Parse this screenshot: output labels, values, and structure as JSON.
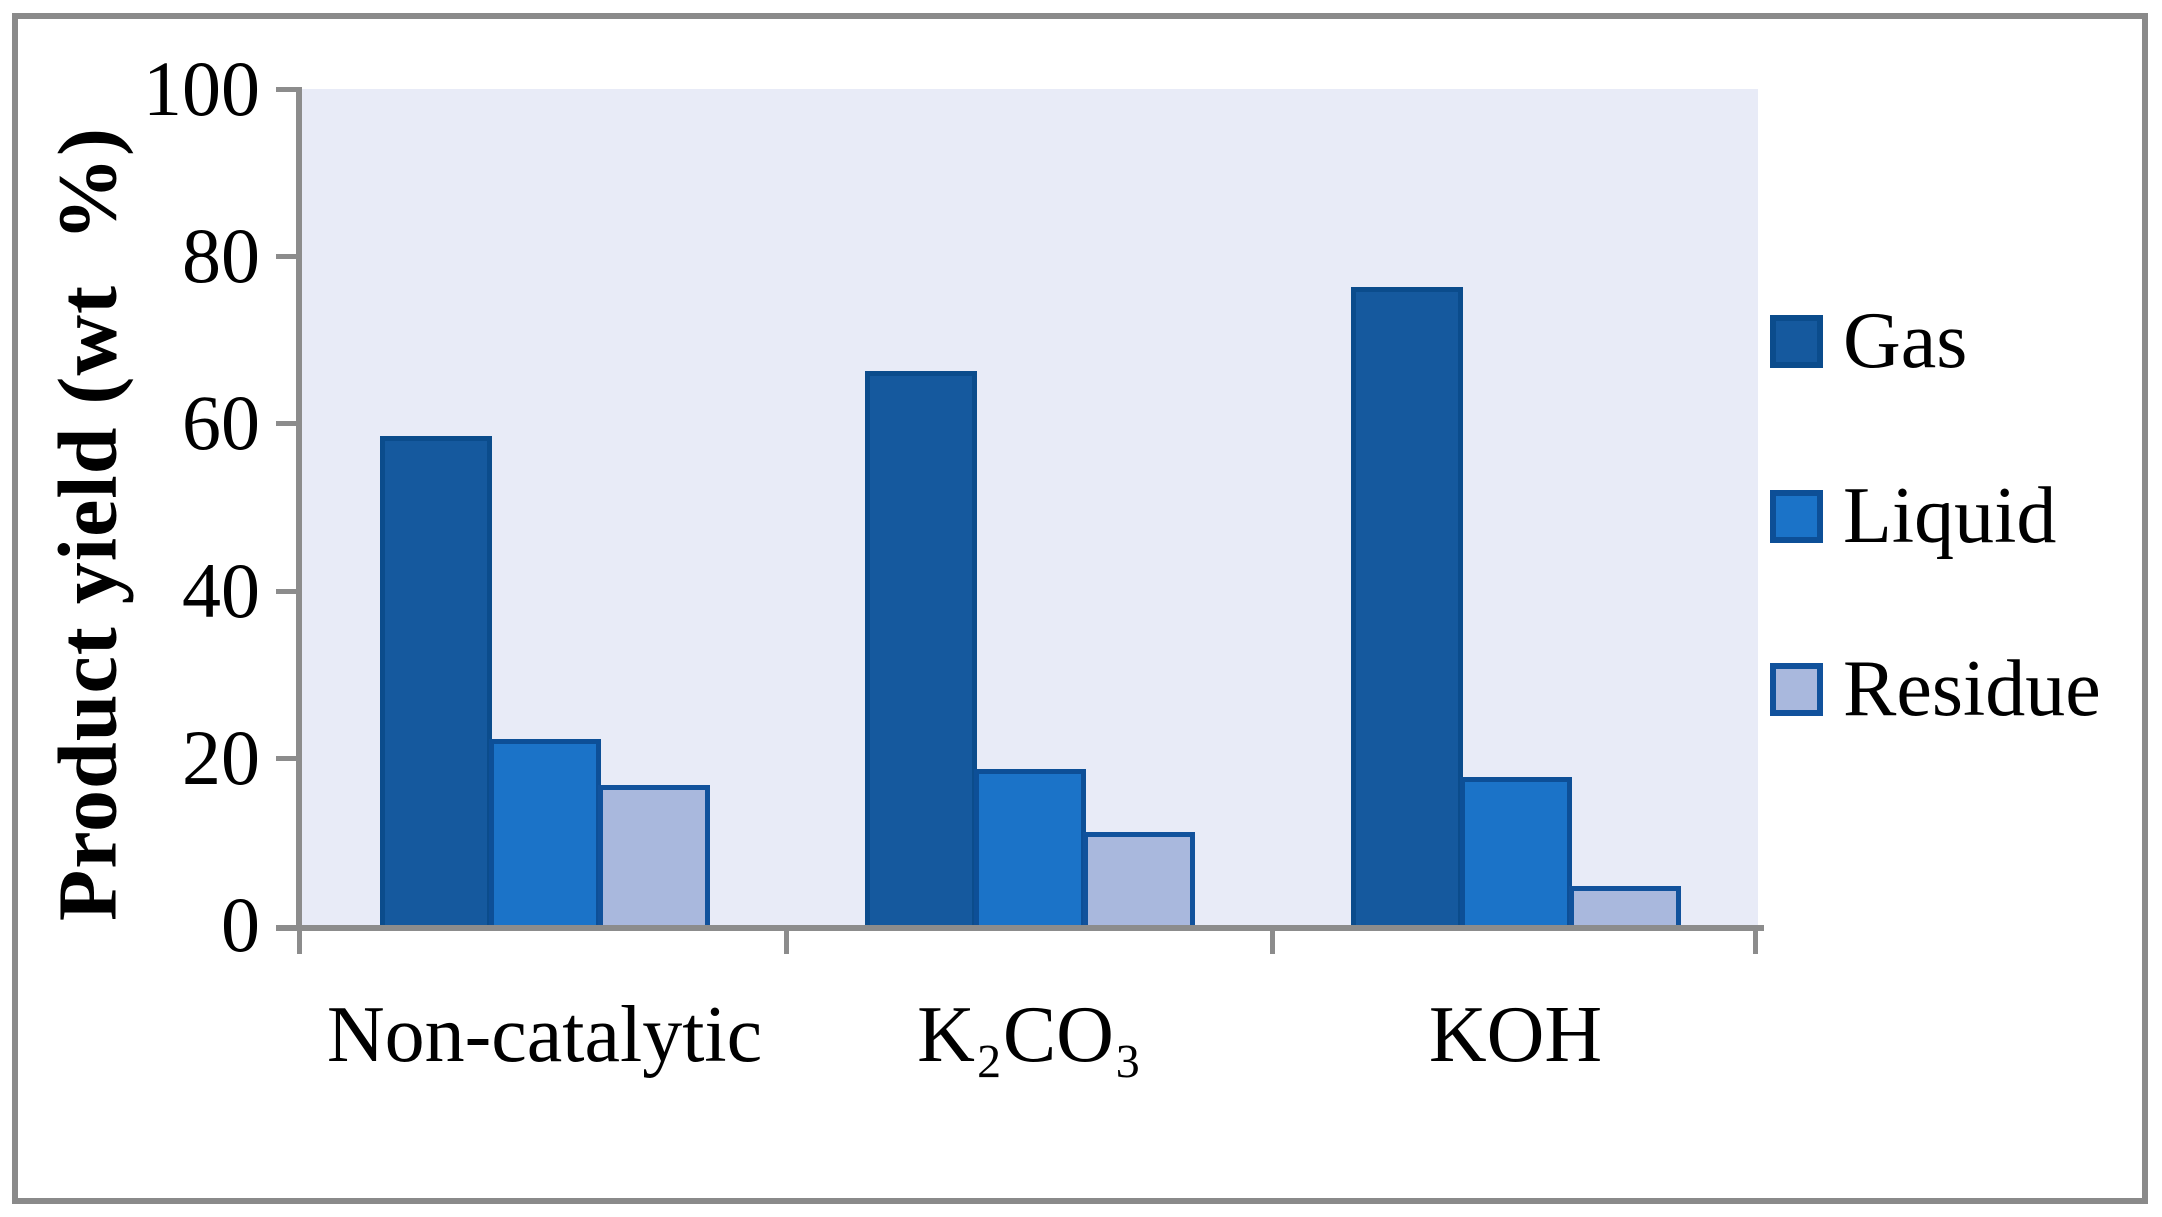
{
  "chart_data": {
    "type": "bar",
    "title": "",
    "ylabel": "Product yield (wt  %)",
    "xlabel": "",
    "categories": [
      "Non-catalytic",
      "K₂CO₃",
      "KOH"
    ],
    "series": [
      {
        "name": "Gas",
        "values": [
          58.5,
          66.3,
          76.3
        ],
        "fill": "#15599e",
        "border": "#0b4c8c"
      },
      {
        "name": "Liquid",
        "values": [
          22.2,
          18.7,
          17.7
        ],
        "fill": "#1b73c8",
        "border": "#0d4f97"
      },
      {
        "name": "Residue",
        "values": [
          16.7,
          11.1,
          4.7
        ],
        "fill": "#a9b8dd",
        "border": "#11529c"
      }
    ],
    "ylim": [
      0,
      100
    ],
    "yticks": [
      0,
      20,
      40,
      60,
      80,
      100
    ],
    "grid": false,
    "legend_position": "right",
    "plot_bg": "#e8ebf7",
    "axis_color": "#8c8c8c",
    "frame_color": "#8a8a8a"
  }
}
